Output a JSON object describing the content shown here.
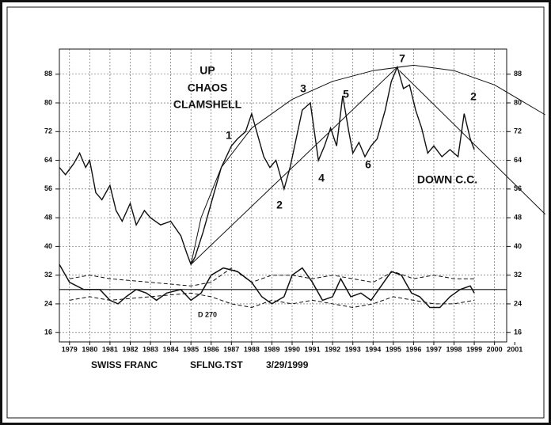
{
  "chart_data": {
    "type": "line",
    "xlim": [
      1978.5,
      2000.6
    ],
    "ylim": [
      13.4,
      95
    ],
    "xticks": [
      1979,
      1980,
      1981,
      1982,
      1983,
      1984,
      1985,
      1986,
      1987,
      1988,
      1989,
      1990,
      1991,
      1992,
      1993,
      1994,
      1995,
      1996,
      1997,
      1998,
      1999,
      2000,
      2001
    ],
    "yticks": [
      16,
      24,
      32,
      40,
      48,
      56,
      64,
      72,
      80,
      88
    ],
    "grid": true,
    "color": "#111111",
    "price": {
      "x": [
        1978.5,
        1978.8,
        1979.2,
        1979.5,
        1979.8,
        1980.0,
        1980.3,
        1980.6,
        1981.0,
        1981.3,
        1981.6,
        1982.0,
        1982.3,
        1982.7,
        1983.0,
        1983.5,
        1984.0,
        1984.5,
        1984.8,
        1985.0,
        1985.2,
        1985.6,
        1986.0,
        1986.5,
        1987.0,
        1987.3,
        1987.7,
        1988.0,
        1988.3,
        1988.6,
        1988.9,
        1989.2,
        1989.6,
        1989.9,
        1990.2,
        1990.5,
        1990.9,
        1991.1,
        1991.3,
        1991.6,
        1991.9,
        1992.2,
        1992.5,
        1992.8,
        1993.0,
        1993.3,
        1993.6,
        1993.9,
        1994.2,
        1994.6,
        1994.9,
        1995.2,
        1995.5,
        1995.8,
        1996.1,
        1996.4,
        1996.7,
        1997.0,
        1997.4,
        1997.8,
        1998.2,
        1998.5,
        1998.8,
        1999.0
      ],
      "y": [
        62,
        60,
        63,
        66,
        62,
        64,
        55,
        53,
        57,
        50,
        47,
        52,
        46,
        50,
        48,
        46,
        47,
        43,
        38,
        35,
        37,
        44,
        52,
        62,
        68,
        70,
        72,
        77,
        71,
        65,
        62,
        64,
        56,
        62,
        70,
        78,
        80,
        72,
        64,
        68,
        73,
        68,
        82,
        72,
        66,
        69,
        65,
        68,
        70,
        78,
        86,
        90,
        84,
        85,
        78,
        73,
        66,
        68,
        65,
        67,
        65,
        77,
        70,
        67
      ]
    },
    "oscillator": {
      "x": [
        1978.5,
        1979,
        1979.7,
        1980.5,
        1981,
        1981.4,
        1981.8,
        1982.3,
        1982.8,
        1983.3,
        1983.8,
        1984.5,
        1985,
        1985.5,
        1986,
        1986.6,
        1987.3,
        1988,
        1988.5,
        1989,
        1989.6,
        1990,
        1990.5,
        1991,
        1991.5,
        1992,
        1992.4,
        1992.9,
        1993.4,
        1993.9,
        1994.4,
        1994.9,
        1995.4,
        1995.9,
        1996.3,
        1996.8,
        1997.3,
        1997.8,
        1998.3,
        1998.8,
        1999
      ],
      "y": [
        35,
        30,
        28,
        28,
        25,
        24,
        26,
        28,
        27,
        25,
        27,
        28,
        25,
        27,
        32,
        34,
        33,
        30,
        26,
        24,
        26,
        32,
        34,
        30,
        25,
        26,
        31,
        26,
        27,
        25,
        29,
        33,
        32,
        27,
        26,
        23,
        23,
        26,
        28,
        29,
        27
      ]
    },
    "upper_band": {
      "x": [
        1979,
        1980,
        1981,
        1983,
        1985,
        1986,
        1987,
        1988,
        1989,
        1990,
        1991,
        1992,
        1993,
        1994,
        1995,
        1996,
        1997,
        1998,
        1999
      ],
      "y": [
        31,
        32,
        31,
        30,
        29,
        30,
        34,
        30,
        32,
        32,
        31,
        32,
        31,
        30,
        33,
        31,
        32,
        31,
        31
      ]
    },
    "lower_band": {
      "x": [
        1979,
        1980,
        1981,
        1983,
        1985,
        1986,
        1987,
        1988,
        1989,
        1990,
        1991,
        1992,
        1993,
        1994,
        1995,
        1996,
        1997,
        1998,
        1999
      ],
      "y": [
        25,
        26,
        25,
        26,
        27,
        26,
        24,
        23,
        25,
        24,
        25,
        24,
        23,
        24,
        26,
        25,
        24,
        24,
        25
      ]
    },
    "hline": 28,
    "arc": {
      "x": [
        1985,
        1985.5,
        1986.5,
        1988,
        1990,
        1992,
        1994,
        1996,
        1998,
        2000,
        2002.5
      ],
      "y": [
        35,
        48,
        62,
        73,
        81,
        86,
        89,
        90.5,
        89,
        85,
        76.7
      ]
    },
    "trend_up": {
      "x": [
        1985,
        1995.2
      ],
      "y": [
        35,
        90
      ]
    },
    "trend_down": {
      "x": [
        1995.3,
        2002.5
      ],
      "y": [
        89,
        49
      ]
    },
    "annotations": [
      "UP",
      "CHAOS",
      "CLAMSHELL",
      "1",
      "2",
      "3",
      "4",
      "5",
      "6",
      "7",
      "2",
      "DOWN C.C.",
      "D 270"
    ],
    "footer": [
      "SWISS FRANC",
      "SFLNG.TST",
      "3/29/1999"
    ]
  }
}
